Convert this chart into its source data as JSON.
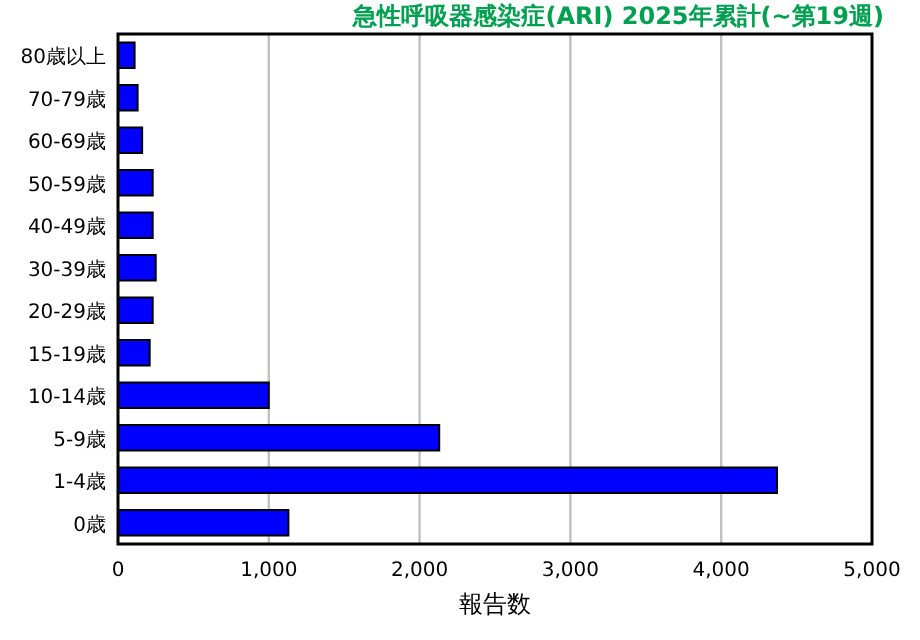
{
  "chart_data": {
    "type": "bar",
    "orientation": "horizontal",
    "title": "急性呼吸器感染症(ARI) 2025年累計(~第19週)",
    "xlabel": "報告数",
    "categories": [
      "80歳以上",
      "70-79歳",
      "60-69歳",
      "50-59歳",
      "40-49歳",
      "30-39歳",
      "20-29歳",
      "15-19歳",
      "10-14歳",
      "5-9歳",
      "1-4歳",
      "0歳"
    ],
    "values": [
      110,
      130,
      160,
      230,
      230,
      250,
      230,
      210,
      1000,
      2130,
      4370,
      1130
    ],
    "color": "#0000ff",
    "xlim": [
      0,
      5000
    ],
    "xticks": [
      0,
      {
        "value": 1000,
        "label": "1,000"
      },
      {
        "value": 2000,
        "label": "2,000"
      },
      {
        "value": 3000,
        "label": "3,000"
      },
      {
        "value": 4000,
        "label": "4,000"
      },
      {
        "value": 5000,
        "label": "5,000"
      }
    ],
    "grid": "x"
  }
}
